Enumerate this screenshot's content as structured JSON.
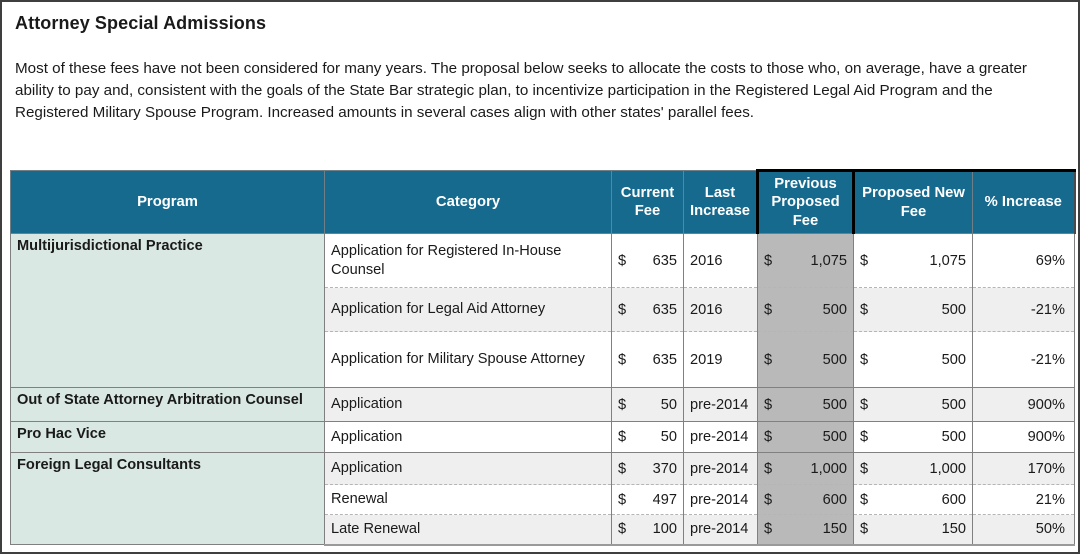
{
  "page": {
    "title": "Attorney Special Admissions",
    "description": "Most of these fees have not been considered for many years. The proposal below seeks to allocate the costs to those who, on average, have a greater ability to pay and, consistent with the goals of the State Bar strategic plan, to incentivize participation in the Registered Legal Aid Program and the Registered Military Spouse Program. Increased amounts in several cases align with other states' parallel fees."
  },
  "table": {
    "columns": [
      "Program",
      "Category",
      "Current Fee",
      "Last Increase",
      "Previous Proposed Fee",
      "Proposed New Fee",
      "% Increase"
    ],
    "currency_symbol": "$",
    "groups": [
      {
        "program": "Multijurisdictional Practice",
        "rows": [
          {
            "category": "Application for Registered In-House Counsel",
            "current_fee": "635",
            "last_increase": "2016",
            "previous_proposed_fee": "1,075",
            "proposed_new_fee": "1,075",
            "pct_increase": "69%"
          },
          {
            "category": "Application for Legal Aid Attorney",
            "current_fee": "635",
            "last_increase": "2016",
            "previous_proposed_fee": "500",
            "proposed_new_fee": "500",
            "pct_increase": "-21%"
          },
          {
            "category": "Application  for Military Spouse Attorney",
            "current_fee": "635",
            "last_increase": "2019",
            "previous_proposed_fee": "500",
            "proposed_new_fee": "500",
            "pct_increase": "-21%"
          }
        ]
      },
      {
        "program": "Out of State Attorney Arbitration Counsel",
        "rows": [
          {
            "category": "Application",
            "current_fee": "50",
            "last_increase": "pre-2014",
            "previous_proposed_fee": "500",
            "proposed_new_fee": "500",
            "pct_increase": "900%"
          }
        ]
      },
      {
        "program": "Pro Hac Vice",
        "rows": [
          {
            "category": "Application",
            "current_fee": "50",
            "last_increase": "pre-2014",
            "previous_proposed_fee": "500",
            "proposed_new_fee": "500",
            "pct_increase": "900%"
          }
        ]
      },
      {
        "program": "Foreign Legal Consultants",
        "rows": [
          {
            "category": "Application",
            "current_fee": "370",
            "last_increase": "pre-2014",
            "previous_proposed_fee": "1,000",
            "proposed_new_fee": "1,000",
            "pct_increase": "170%"
          },
          {
            "category": "Renewal",
            "current_fee": "497",
            "last_increase": "pre-2014",
            "previous_proposed_fee": "600",
            "proposed_new_fee": "600",
            "pct_increase": "21%"
          },
          {
            "category": "Late Renewal",
            "current_fee": "100",
            "last_increase": "pre-2014",
            "previous_proposed_fee": "150",
            "proposed_new_fee": "150",
            "pct_increase": "50%"
          }
        ]
      }
    ]
  },
  "colors": {
    "header_bg": "#166a8e",
    "program_bg": "#d9e8e2",
    "alt_row_bg": "#efefef",
    "prev_col_bg": "#b9b9b9",
    "accent": "#000000"
  }
}
